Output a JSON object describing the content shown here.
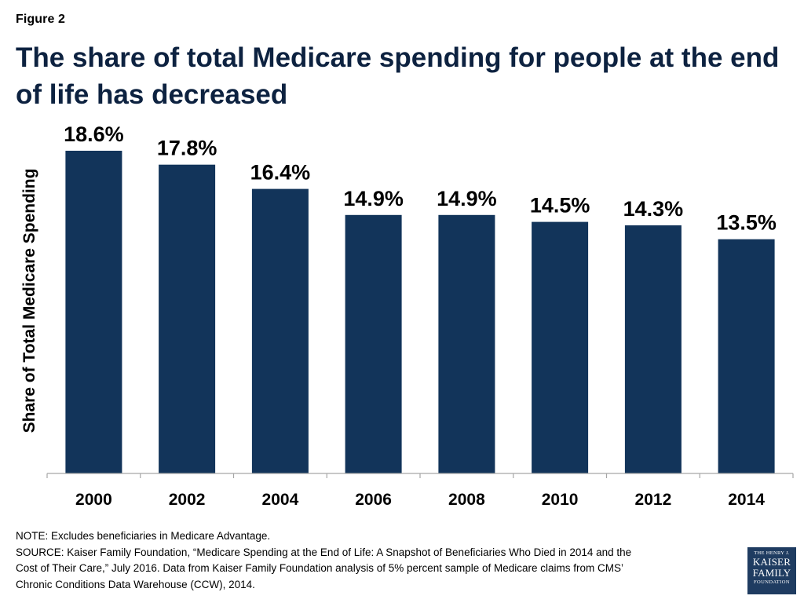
{
  "figure_label": "Figure 2",
  "title": "The share of total Medicare spending for people at the end of life has decreased",
  "chart_data": {
    "type": "bar",
    "categories": [
      "2000",
      "2002",
      "2004",
      "2006",
      "2008",
      "2010",
      "2012",
      "2014"
    ],
    "values": [
      18.6,
      17.8,
      16.4,
      14.9,
      14.9,
      14.5,
      14.3,
      13.5
    ],
    "data_labels": [
      "18.6%",
      "17.8%",
      "16.4%",
      "14.9%",
      "14.9%",
      "14.5%",
      "14.3%",
      "13.5%"
    ],
    "title": "The share of total Medicare spending for people at the end of life has decreased",
    "xlabel": "",
    "ylabel": "Share of Total Medicare Spending",
    "ylim": [
      0,
      19
    ],
    "unit": "%",
    "grid": false,
    "legend": "none",
    "bar_color": "#12345a"
  },
  "notes": {
    "note": "NOTE: Excludes beneficiaries in Medicare Advantage.",
    "source_line1": "SOURCE: Kaiser Family Foundation, “Medicare Spending at the End of Life: A Snapshot of Beneficiaries Who Died in 2014 and the",
    "source_line2": "Cost of Their Care,” July 2016. Data from Kaiser Family Foundation analysis of 5% percent sample of Medicare claims from CMS’",
    "source_line3": "Chronic Conditions Data Warehouse (CCW), 2014."
  },
  "logo": {
    "line1": "THE HENRY J.",
    "line2": "KAISER",
    "line3": "FAMILY",
    "line4": "FOUNDATION",
    "color": "#1f3c61"
  }
}
